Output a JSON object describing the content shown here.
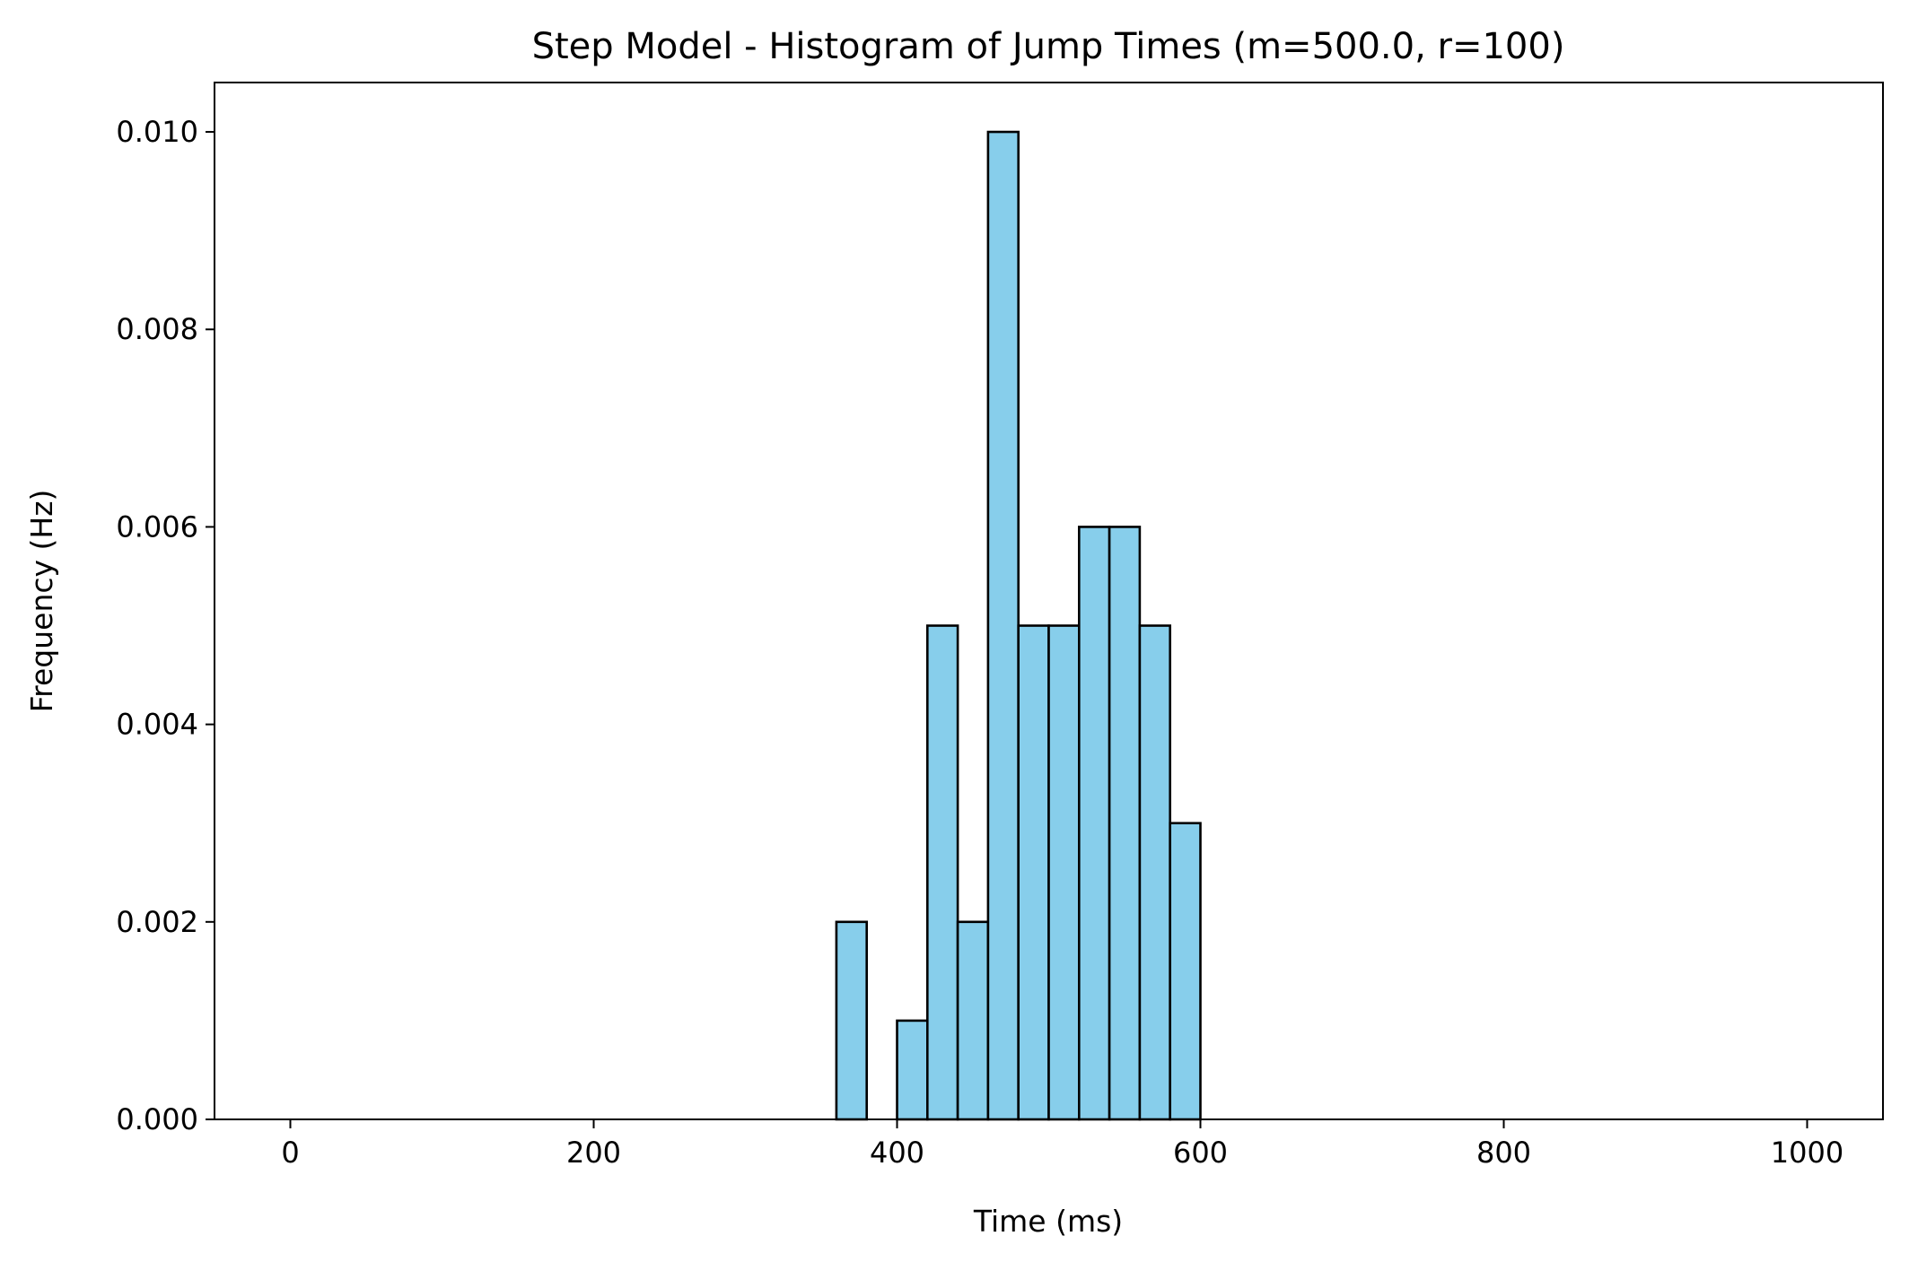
{
  "chart_data": {
    "type": "bar",
    "title": "Step Model - Histogram of Jump Times (m=500.0, r=100)",
    "xlabel": "Time (ms)",
    "ylabel": "Frequency (Hz)",
    "xlim": [
      -50,
      1050
    ],
    "ylim": [
      0,
      0.0105
    ],
    "x_ticks": [
      0,
      200,
      400,
      600,
      800,
      1000
    ],
    "x_tick_labels": [
      "0",
      "200",
      "400",
      "600",
      "800",
      "1000"
    ],
    "y_ticks": [
      0,
      0.002,
      0.004,
      0.006,
      0.008,
      0.01
    ],
    "y_tick_labels": [
      "0.000",
      "0.002",
      "0.004",
      "0.006",
      "0.008",
      "0.010"
    ],
    "bin_width": 20,
    "bin_edges_start": 0,
    "values": [
      0,
      0,
      0,
      0,
      0,
      0,
      0,
      0,
      0,
      0,
      0,
      0,
      0,
      0,
      0,
      0,
      0,
      0,
      0.002,
      0,
      0.001,
      0.005,
      0.002,
      0.01,
      0.005,
      0.005,
      0.006,
      0.006,
      0.005,
      0.003,
      0,
      0,
      0,
      0,
      0,
      0,
      0,
      0,
      0,
      0,
      0,
      0,
      0,
      0,
      0,
      0,
      0,
      0,
      0,
      0
    ],
    "grid": false,
    "legend": "none",
    "bar_color": "#87ceeb",
    "edge_color": "#000000"
  }
}
